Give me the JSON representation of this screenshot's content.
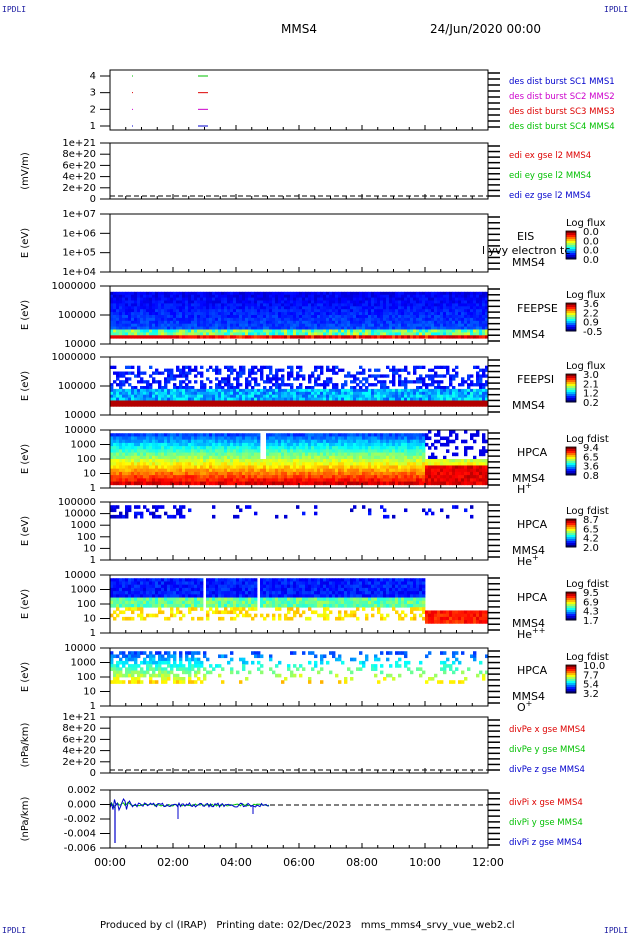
{
  "corners": {
    "tl": "IPDLI",
    "tr": "IPDLI",
    "bl": "IPDLI",
    "br": "IPDLI"
  },
  "header": {
    "mission": "MMS4",
    "date": "24/Jun/2020 00:00"
  },
  "footer": {
    "text": "Produced by cl (IRAP)   Printing date: 02/Dec/2023   mms_mms4_srvy_vue_web2.cl"
  },
  "colors": {
    "blue": "#0000cc",
    "green": "#00c000",
    "magenta": "#cc00cc",
    "red": "#dd0000"
  },
  "chart_data": [
    {
      "type": "scatter",
      "name": "panel-burst",
      "ylabel": "",
      "yticks": [
        "4",
        "3",
        "2",
        "1"
      ],
      "legend": [
        {
          "text": "des dist burst SC1 MMS1",
          "color": "#0000cc"
        },
        {
          "text": "des dist burst SC2 MMS2",
          "color": "#cc00cc"
        },
        {
          "text": "des dist burst SC3 MMS3",
          "color": "#dd0000"
        },
        {
          "text": "des dist burst SC4 MMS4",
          "color": "#00c000"
        }
      ]
    },
    {
      "type": "line",
      "name": "panel-edi",
      "ylabel": "(mV/m)",
      "yticks": [
        "1e+21",
        "8e+20",
        "6e+20",
        "4e+20",
        "2e+20",
        "0"
      ],
      "legend": [
        {
          "text": "edi ex gse l2 MMS4",
          "color": "#dd0000"
        },
        {
          "text": "edi ey gse l2 MMS4",
          "color": "#00c000"
        },
        {
          "text": "edi ez gse l2 MMS4",
          "color": "#0000cc"
        }
      ]
    },
    {
      "type": "heatmap",
      "name": "panel-eis",
      "ylabel": "E (eV)",
      "yticks": [
        "1e+07",
        "1e+06",
        "1e+05",
        "1e+04"
      ],
      "side": [
        "EIS",
        "MMS4"
      ],
      "overlay": "l yvy electron tc",
      "cbar_title": "Log flux",
      "cbar_ticks": [
        "0.0",
        "0.0",
        "0.0",
        "0.0"
      ]
    },
    {
      "type": "heatmap",
      "name": "panel-feeps-e",
      "ylabel": "E (eV)",
      "yticks": [
        "1000000",
        "100000",
        "10000"
      ],
      "side": [
        "FEEPSE",
        "MMS4"
      ],
      "cbar_title": "Log flux",
      "cbar_ticks": [
        "3.6",
        "2.2",
        "0.9",
        "-0.5"
      ]
    },
    {
      "type": "heatmap",
      "name": "panel-feeps-i",
      "ylabel": "E (eV)",
      "yticks": [
        "1000000",
        "100000",
        "10000"
      ],
      "side": [
        "FEEPSI",
        "MMS4"
      ],
      "cbar_title": "Log flux",
      "cbar_ticks": [
        "3.0",
        "2.1",
        "1.2",
        "0.2"
      ]
    },
    {
      "type": "heatmap",
      "name": "panel-hpca-h",
      "ylabel": "E (eV)",
      "yticks": [
        "10000",
        "1000",
        "100",
        "10",
        "1"
      ],
      "side": [
        "HPCA",
        "MMS4"
      ],
      "species": "H",
      "charge": "+",
      "cbar_title": "Log fdist",
      "cbar_ticks": [
        "9.4",
        "6.5",
        "3.6",
        "0.8"
      ]
    },
    {
      "type": "heatmap",
      "name": "panel-hpca-he1",
      "ylabel": "E (eV)",
      "yticks": [
        "100000",
        "10000",
        "1000",
        "100",
        "10",
        "1"
      ],
      "side": [
        "HPCA",
        "MMS4"
      ],
      "species": "He",
      "charge": "+",
      "cbar_title": "Log fdist",
      "cbar_ticks": [
        "8.7",
        "6.5",
        "4.2",
        "2.0"
      ]
    },
    {
      "type": "heatmap",
      "name": "panel-hpca-he2",
      "ylabel": "E (eV)",
      "yticks": [
        "10000",
        "1000",
        "100",
        "10",
        "1"
      ],
      "side": [
        "HPCA",
        "MMS4"
      ],
      "species": "He",
      "charge": "++",
      "cbar_title": "Log fdist",
      "cbar_ticks": [
        "9.5",
        "6.9",
        "4.3",
        "1.7"
      ]
    },
    {
      "type": "heatmap",
      "name": "panel-hpca-o",
      "ylabel": "E (eV)",
      "yticks": [
        "10000",
        "1000",
        "100",
        "10",
        "1"
      ],
      "side": [
        "HPCA",
        "MMS4"
      ],
      "species": "O",
      "charge": "+",
      "cbar_title": "Log fdist",
      "cbar_ticks": [
        "10.0",
        "7.7",
        "5.4",
        "3.2"
      ]
    },
    {
      "type": "line",
      "name": "panel-divpe",
      "ylabel": "(nPa/km)",
      "yticks": [
        "1e+21",
        "8e+20",
        "6e+20",
        "4e+20",
        "2e+20",
        "0"
      ],
      "legend": [
        {
          "text": "divPe x gse MMS4",
          "color": "#dd0000"
        },
        {
          "text": "divPe y gse MMS4",
          "color": "#00c000"
        },
        {
          "text": "divPe z gse MMS4",
          "color": "#0000cc"
        }
      ]
    },
    {
      "type": "line",
      "name": "panel-divpi",
      "ylabel": "(nPa/km)",
      "yticks": [
        "0.002",
        "0.000",
        "-0.002",
        "-0.004",
        "-0.006"
      ],
      "legend": [
        {
          "text": "divPi x gse MMS4",
          "color": "#dd0000"
        },
        {
          "text": "divPi y gse MMS4",
          "color": "#00c000"
        },
        {
          "text": "divPi z gse MMS4",
          "color": "#0000cc"
        }
      ]
    }
  ],
  "xaxis": {
    "ticks": [
      "00:00",
      "02:00",
      "04:00",
      "06:00",
      "08:00",
      "10:00",
      "12:00"
    ]
  }
}
